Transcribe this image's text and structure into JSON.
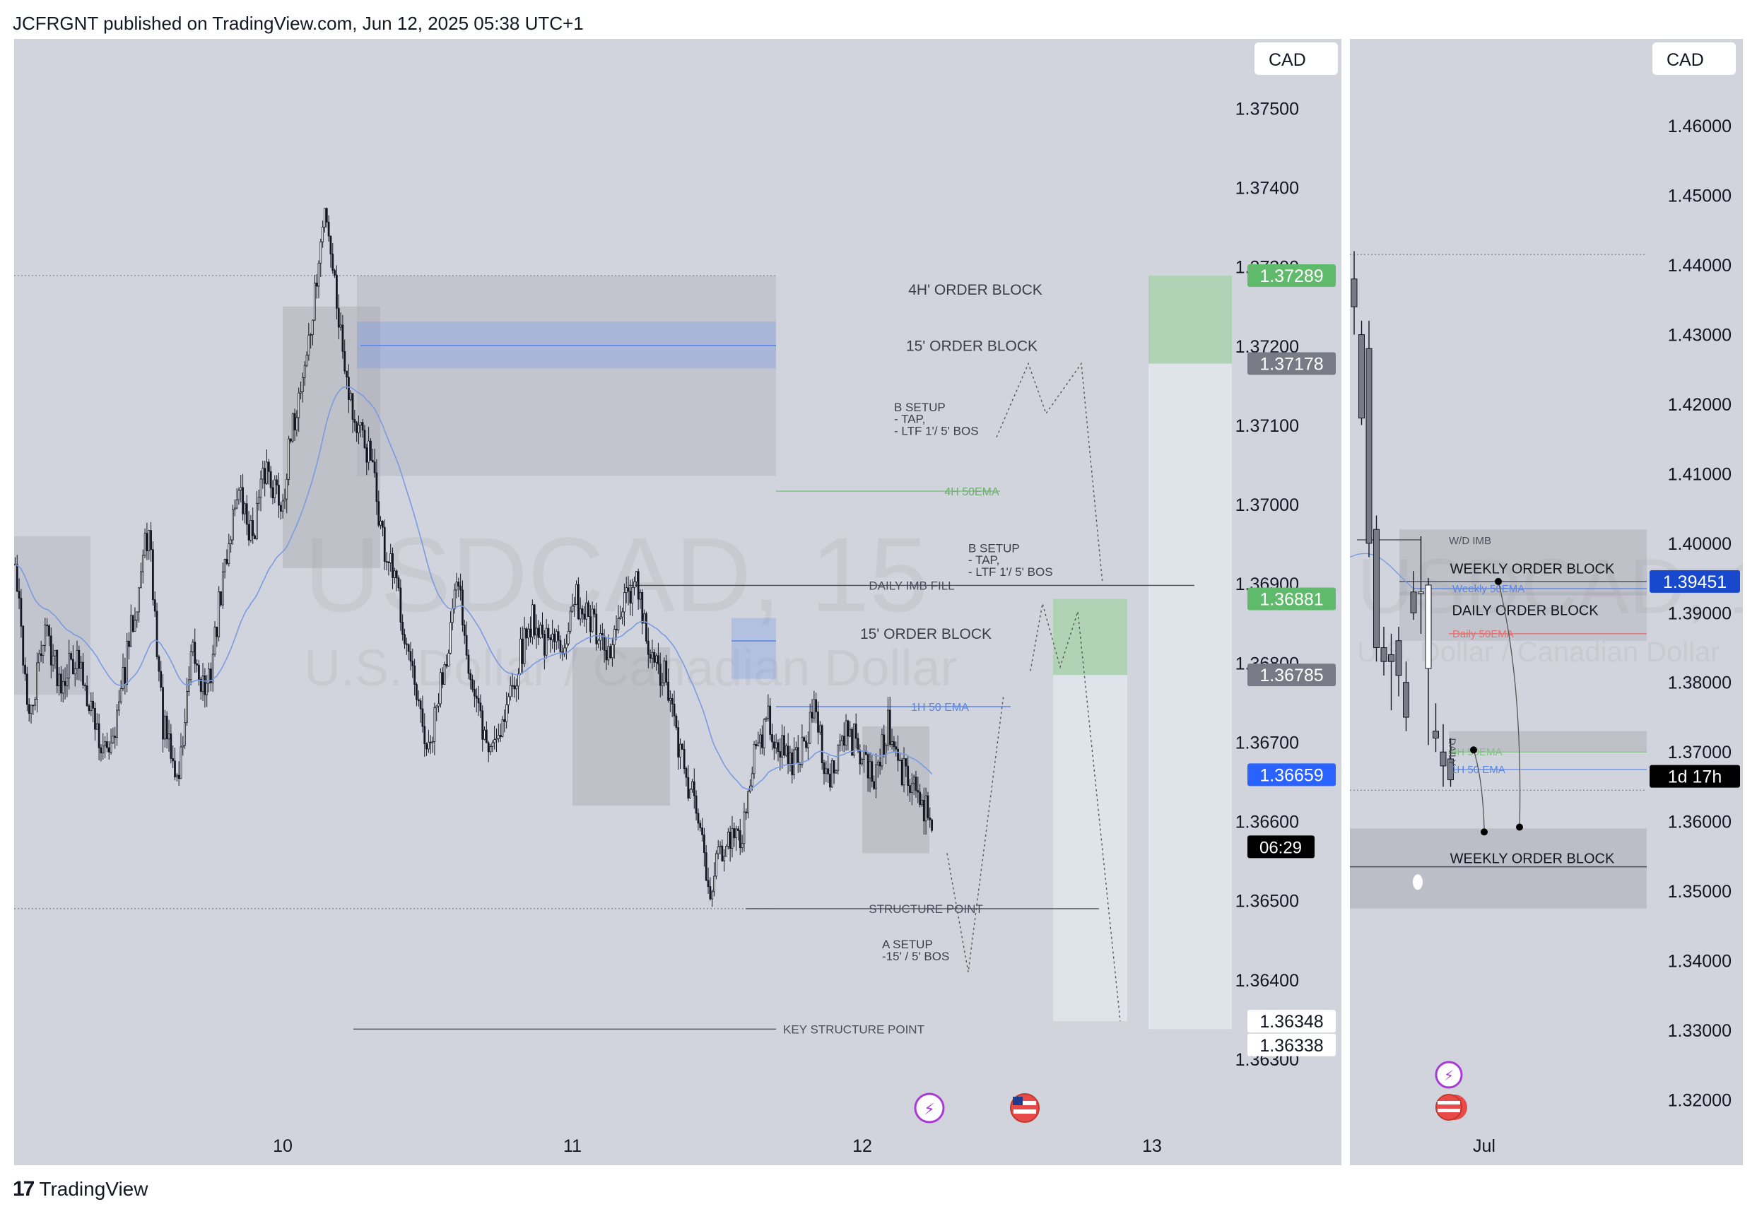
{
  "header": {
    "attribution": "JCFRGNT published on TradingView.com, Jun 12, 2025 05:38 UTC+1"
  },
  "footer": {
    "brand": "TradingView",
    "logo_glyph": "17"
  },
  "colors": {
    "bg": "#d1d4dc",
    "candle": "#131722",
    "ema": "#7b9be0",
    "green": "#5fba6b",
    "blue_label": "#2962ff",
    "gray_label": "#787b86",
    "navy_label": "#1848cc",
    "dark": "#000000"
  },
  "chart_data": [
    {
      "type": "candlestick",
      "symbol_watermark": "USDCAD, 15",
      "symbol_description": "U.S. Dollar / Canadian Dollar",
      "currency": "CAD",
      "ylim": [
        1.3625,
        1.3757
      ],
      "y_ticks": [
        "1.37500",
        "1.37400",
        "1.37300",
        "1.37200",
        "1.37100",
        "1.37000",
        "1.36900",
        "1.36800",
        "1.36700",
        "1.36600",
        "1.36500",
        "1.36400",
        "1.36300"
      ],
      "x_ticks": [
        "10",
        "11",
        "12",
        "13"
      ],
      "price_labels": [
        {
          "value": "1.37289",
          "kind": "green"
        },
        {
          "value": "1.37178",
          "kind": "gray"
        },
        {
          "value": "1.36881",
          "kind": "green"
        },
        {
          "value": "1.36785",
          "kind": "gray"
        },
        {
          "value": "1.36659",
          "kind": "blue"
        },
        {
          "value": "1.36348",
          "kind": "white"
        },
        {
          "value": "1.36338",
          "kind": "white"
        }
      ],
      "countdown": "06:29",
      "path_close": [
        1.3692,
        1.3672,
        1.3685,
        1.3678,
        1.3681,
        1.3676,
        1.3668,
        1.3674,
        1.3686,
        1.3697,
        1.3672,
        1.3665,
        1.3681,
        1.3676,
        1.369,
        1.3702,
        1.3696,
        1.3705,
        1.37,
        1.3712,
        1.3722,
        1.3738,
        1.3722,
        1.371,
        1.3706,
        1.3694,
        1.3688,
        1.3676,
        1.3668,
        1.368,
        1.369,
        1.3676,
        1.3669,
        1.3673,
        1.368,
        1.3686,
        1.3682,
        1.3683,
        1.3688,
        1.3685,
        1.368,
        1.3686,
        1.369,
        1.368,
        1.3678,
        1.3668,
        1.3662,
        1.3652,
        1.3658,
        1.3657,
        1.3669,
        1.3673,
        1.3668,
        1.3668,
        1.3674,
        1.3665,
        1.3671,
        1.367,
        1.3665,
        1.3672,
        1.3666,
        1.3664,
        1.366
      ],
      "annotations": [
        "4H' ORDER BLOCK",
        "15' ORDER BLOCK",
        "B SETUP",
        "- TAP,",
        "- LTF 1'/ 5' BOS",
        "4H 50EMA",
        "B SETUP",
        "- TAP,",
        "- LTF 1'/ 5' BOS",
        "DAILY IMB FILL",
        "15' ORDER BLOCK",
        "1H 50 EMA",
        "STRUCTURE POINT",
        "A SETUP",
        "-15' / 5' BOS",
        "KEY STRUCTURE POINT"
      ]
    },
    {
      "type": "candlestick",
      "symbol_watermark": "USDCAD, 1W",
      "symbol_description": "U.S. Dollar / Canadian Dollar",
      "currency": "CAD",
      "ylim": [
        1.311,
        1.4715
      ],
      "y_ticks": [
        "1.46000",
        "1.45000",
        "1.44000",
        "1.43000",
        "1.42000",
        "1.41000",
        "1.40000",
        "1.39000",
        "1.38000",
        "1.37000",
        "1.36000",
        "1.35000",
        "1.34000",
        "1.33000",
        "1.32000"
      ],
      "x_ticks": [
        "Jul"
      ],
      "price_labels": [
        {
          "value": "1.39451",
          "kind": "navy"
        },
        {
          "value": "1d 17h",
          "kind": "black"
        }
      ],
      "candles": [
        {
          "o": 1.438,
          "h": 1.442,
          "l": 1.43,
          "c": 1.434
        },
        {
          "o": 1.43,
          "h": 1.432,
          "l": 1.417,
          "c": 1.418
        },
        {
          "o": 1.428,
          "h": 1.432,
          "l": 1.398,
          "c": 1.4
        },
        {
          "o": 1.402,
          "h": 1.404,
          "l": 1.383,
          "c": 1.385
        },
        {
          "o": 1.385,
          "h": 1.388,
          "l": 1.381,
          "c": 1.383
        },
        {
          "o": 1.384,
          "h": 1.387,
          "l": 1.376,
          "c": 1.383
        },
        {
          "o": 1.386,
          "h": 1.388,
          "l": 1.378,
          "c": 1.381
        },
        {
          "o": 1.38,
          "h": 1.383,
          "l": 1.373,
          "c": 1.375
        },
        {
          "o": 1.393,
          "h": 1.396,
          "l": 1.389,
          "c": 1.39
        },
        {
          "o": 1.393,
          "h": 1.401,
          "l": 1.387,
          "c": 1.393
        },
        {
          "o": 1.382,
          "h": 1.395,
          "l": 1.371,
          "c": 1.394
        },
        {
          "o": 1.373,
          "h": 1.377,
          "l": 1.37,
          "c": 1.372
        },
        {
          "o": 1.37,
          "h": 1.374,
          "l": 1.365,
          "c": 1.368
        },
        {
          "o": 1.369,
          "h": 1.372,
          "l": 1.365,
          "c": 1.366
        }
      ],
      "annotations": [
        "W/D IMB",
        "WEEKLY ORDER BLOCK",
        "Weekly 50EMA",
        "DAILY ORDER BLOCK",
        "Daily 50EMA",
        "4H 50EMA",
        "1H 50 EMA",
        "DAILY",
        "WEEKLY ORDER BLOCK"
      ]
    }
  ]
}
